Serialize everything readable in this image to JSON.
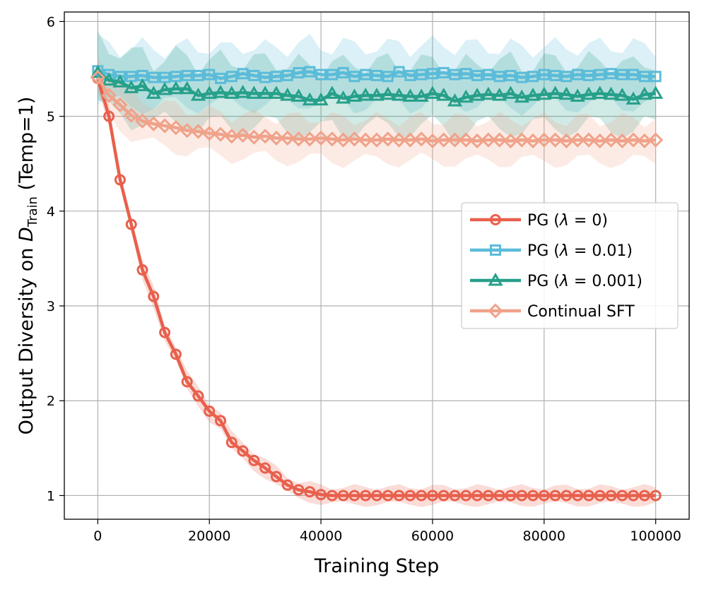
{
  "chart_data": {
    "type": "line",
    "title": "",
    "xlabel": "Training Step",
    "ylabel": {
      "prefix": "Output Diversity on ",
      "symbol": "D",
      "subscript": "Train",
      "suffix": " (Temp=1)"
    },
    "xlim": [
      -6000,
      106000
    ],
    "ylim": [
      0.75,
      6.1
    ],
    "x_ticks": [
      0,
      20000,
      40000,
      60000,
      80000,
      100000
    ],
    "x_tick_labels": [
      "0",
      "20000",
      "40000",
      "60000",
      "80000",
      "100000"
    ],
    "y_ticks": [
      1,
      2,
      3,
      4,
      5,
      6
    ],
    "y_tick_labels": [
      "1",
      "2",
      "3",
      "4",
      "5",
      "6"
    ],
    "grid": true,
    "legend_position": "center-right",
    "x_start": 0,
    "x_step": 2000,
    "series": [
      {
        "name": "PG (λ = 0)",
        "legend": {
          "prefix": "PG (",
          "lambda": "λ",
          "rest": " = 0)"
        },
        "color": "#e8604c",
        "marker": "circle",
        "band": 0.09,
        "values": [
          5.4,
          5.0,
          4.33,
          3.86,
          3.38,
          3.1,
          2.72,
          2.49,
          2.2,
          2.05,
          1.89,
          1.79,
          1.56,
          1.47,
          1.37,
          1.29,
          1.2,
          1.11,
          1.06,
          1.04,
          1.01,
          1.0,
          1.0,
          1.0,
          1.0,
          1.0,
          1.0,
          1.0,
          1.0,
          1.0,
          1.0,
          1.0,
          1.0,
          1.0,
          1.0,
          1.0,
          1.0,
          1.0,
          1.0,
          1.0,
          1.0,
          1.0,
          1.0,
          1.0,
          1.0,
          1.0,
          1.0,
          1.0,
          1.0,
          1.0,
          1.0
        ]
      },
      {
        "name": "PG (λ = 0.01)",
        "legend": {
          "prefix": "PG (",
          "lambda": "λ",
          "rest": " = 0.01)"
        },
        "color": "#5bbcd9",
        "marker": "square",
        "band": 0.3,
        "values": [
          5.48,
          5.44,
          5.42,
          5.42,
          5.43,
          5.41,
          5.41,
          5.42,
          5.43,
          5.43,
          5.44,
          5.4,
          5.42,
          5.45,
          5.43,
          5.41,
          5.42,
          5.43,
          5.46,
          5.47,
          5.44,
          5.44,
          5.46,
          5.42,
          5.44,
          5.43,
          5.42,
          5.47,
          5.43,
          5.44,
          5.45,
          5.46,
          5.44,
          5.45,
          5.43,
          5.44,
          5.42,
          5.43,
          5.41,
          5.42,
          5.44,
          5.43,
          5.42,
          5.44,
          5.43,
          5.44,
          5.45,
          5.44,
          5.44,
          5.42,
          5.42
        ]
      },
      {
        "name": "PG (λ = 0.001)",
        "legend": {
          "prefix": "PG (",
          "lambda": "λ",
          "rest": " = 0.001)"
        },
        "color": "#27a08a",
        "marker": "triangle",
        "band": 0.34,
        "values": [
          5.46,
          5.38,
          5.36,
          5.3,
          5.32,
          5.24,
          5.28,
          5.29,
          5.29,
          5.22,
          5.24,
          5.25,
          5.24,
          5.25,
          5.24,
          5.24,
          5.24,
          5.22,
          5.21,
          5.17,
          5.17,
          5.24,
          5.19,
          5.21,
          5.22,
          5.22,
          5.23,
          5.22,
          5.21,
          5.21,
          5.24,
          5.22,
          5.16,
          5.2,
          5.22,
          5.23,
          5.22,
          5.24,
          5.2,
          5.22,
          5.23,
          5.24,
          5.23,
          5.21,
          5.23,
          5.24,
          5.23,
          5.22,
          5.18,
          5.23,
          5.24
        ]
      },
      {
        "name": "Continual SFT",
        "legend": {
          "prefix": "Continual SFT",
          "lambda": "",
          "rest": ""
        },
        "color": "#f0a28a",
        "marker": "diamond",
        "band": 0.22,
        "values": [
          5.41,
          5.22,
          5.12,
          5.01,
          4.95,
          4.92,
          4.9,
          4.88,
          4.85,
          4.84,
          4.82,
          4.81,
          4.79,
          4.8,
          4.78,
          4.79,
          4.77,
          4.77,
          4.76,
          4.76,
          4.77,
          4.76,
          4.75,
          4.76,
          4.75,
          4.75,
          4.76,
          4.75,
          4.75,
          4.76,
          4.74,
          4.75,
          4.75,
          4.75,
          4.74,
          4.75,
          4.75,
          4.74,
          4.75,
          4.74,
          4.75,
          4.75,
          4.74,
          4.75,
          4.75,
          4.74,
          4.75,
          4.74,
          4.75,
          4.74,
          4.75
        ]
      }
    ]
  }
}
